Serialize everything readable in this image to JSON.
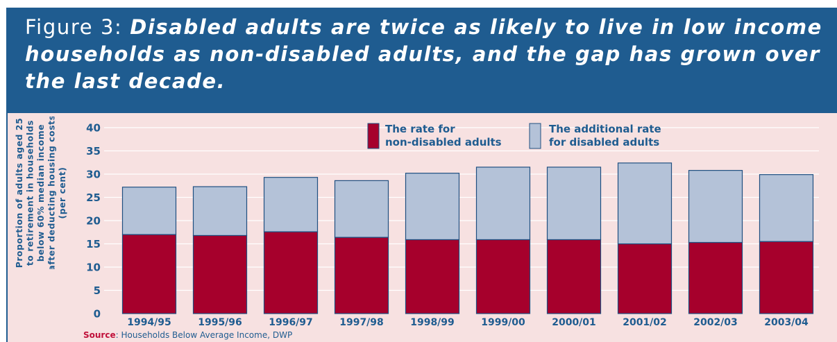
{
  "figure": {
    "prefix": "Figure 3: ",
    "headline": "Disabled adults are twice as likely to live in low income households as non-disabled adults, and the gap has grown over the last decade."
  },
  "source": {
    "label": "Source",
    "text": ": Households Below Average Income, DWP"
  },
  "colors": {
    "band": "#1f5c90",
    "panel": "#f7e1e1",
    "non_disabled": "#a6002c",
    "additional": "#b4c2d8",
    "text": "#1f5c90"
  },
  "chart_data": {
    "type": "bar",
    "stacked": true,
    "categories": [
      "1994/95",
      "1995/96",
      "1996/97",
      "1997/98",
      "1998/99",
      "1999/00",
      "2000/01",
      "2001/02",
      "2002/03",
      "2003/04"
    ],
    "series": [
      {
        "name": "The rate for non-disabled adults",
        "color": "#a6002c",
        "values": [
          17.0,
          16.8,
          17.6,
          16.4,
          15.9,
          15.9,
          15.9,
          15.0,
          15.3,
          15.5
        ]
      },
      {
        "name": "The additional rate for disabled adults",
        "color": "#b4c2d8",
        "values": [
          10.2,
          10.5,
          11.7,
          12.2,
          14.3,
          15.6,
          15.6,
          17.4,
          15.5,
          14.4
        ]
      }
    ],
    "legend_lines": [
      [
        "The rate for",
        "non-disabled adults"
      ],
      [
        "The additional rate",
        "for disabled adults"
      ]
    ],
    "ylabel_lines": [
      "Proportion of adults aged 25",
      "to retirement in households",
      "below 60% median income",
      "after deducting housing costs",
      "(per cent)"
    ],
    "yticks": [
      0,
      5,
      10,
      15,
      20,
      25,
      30,
      35,
      40
    ],
    "ylim": [
      0,
      40
    ],
    "grid": true,
    "legend_position": "top-center"
  }
}
